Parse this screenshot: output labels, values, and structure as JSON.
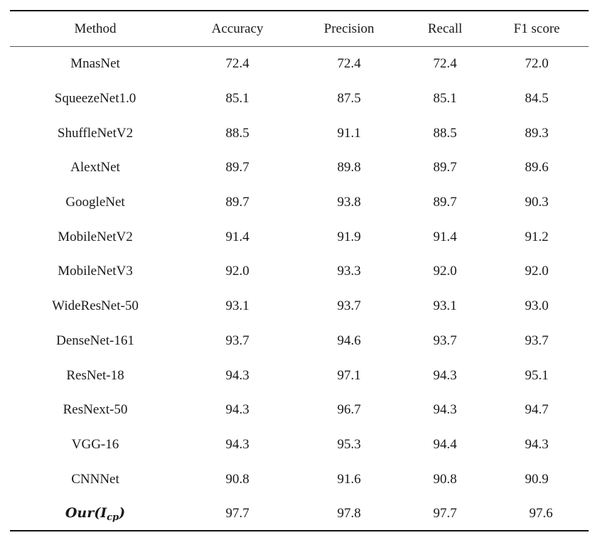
{
  "table": {
    "headers": [
      "Method",
      "Accuracy",
      "Precision",
      "Recall",
      "F1 score"
    ],
    "rows": [
      {
        "method": "MnasNet",
        "accuracy": "72.4",
        "precision": "72.4",
        "recall": "72.4",
        "f1": "72.0"
      },
      {
        "method": "SqueezeNet1.0",
        "accuracy": "85.1",
        "precision": "87.5",
        "recall": "85.1",
        "f1": "84.5"
      },
      {
        "method": "ShuffleNetV2",
        "accuracy": "88.5",
        "precision": "91.1",
        "recall": "88.5",
        "f1": "89.3"
      },
      {
        "method": "AlextNet",
        "accuracy": "89.7",
        "precision": "89.8",
        "recall": "89.7",
        "f1": "89.6"
      },
      {
        "method": "GoogleNet",
        "accuracy": "89.7",
        "precision": "93.8",
        "recall": "89.7",
        "f1": "90.3"
      },
      {
        "method": "MobileNetV2",
        "accuracy": "91.4",
        "precision": "91.9",
        "recall": "91.4",
        "f1": "91.2"
      },
      {
        "method": "MobileNetV3",
        "accuracy": "92.0",
        "precision": "93.3",
        "recall": "92.0",
        "f1": "92.0"
      },
      {
        "method": "WideResNet-50",
        "accuracy": "93.1",
        "precision": "93.7",
        "recall": "93.1",
        "f1": "93.0"
      },
      {
        "method": "DenseNet-161",
        "accuracy": "93.7",
        "precision": "94.6",
        "recall": "93.7",
        "f1": "93.7"
      },
      {
        "method": "ResNet-18",
        "accuracy": "94.3",
        "precision": "97.1",
        "recall": "94.3",
        "f1": "95.1"
      },
      {
        "method": "ResNext-50",
        "accuracy": "94.3",
        "precision": "96.7",
        "recall": "94.3",
        "f1": "94.7"
      },
      {
        "method": "VGG-16",
        "accuracy": "94.3",
        "precision": "95.3",
        "recall": "94.4",
        "f1": "94.3"
      },
      {
        "method": "CNNNet",
        "accuracy": "90.8",
        "precision": "91.6",
        "recall": "90.8",
        "f1": "90.9"
      },
      {
        "method_base": "Our(I",
        "method_sub": "cp",
        "method_close": ")",
        "accuracy": "97.7",
        "precision": "97.8",
        "recall": "97.7",
        "f1": "97.6"
      }
    ]
  }
}
